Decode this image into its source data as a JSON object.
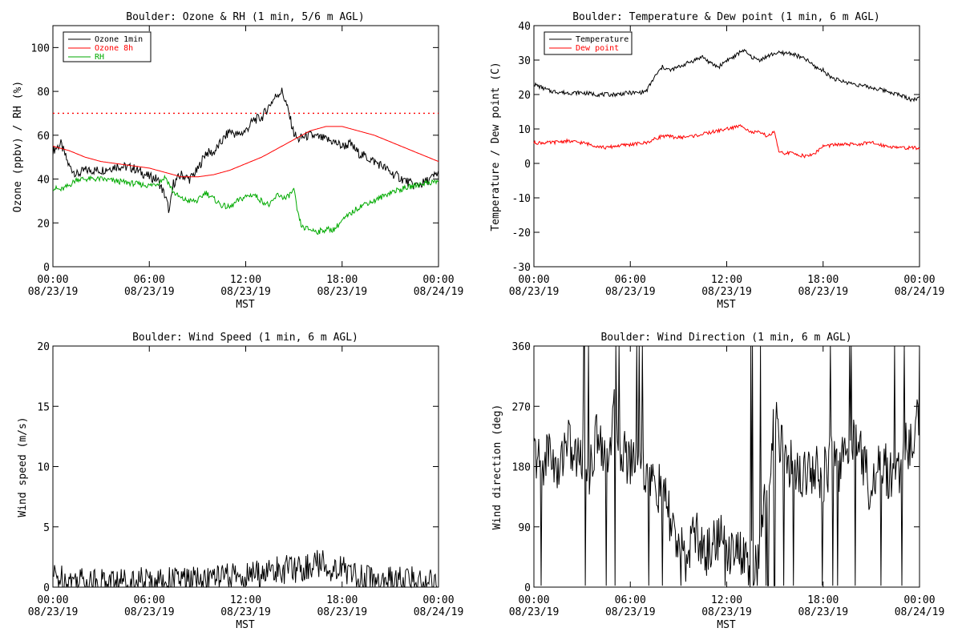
{
  "chart_data": [
    {
      "type": "line",
      "title": "Boulder: Ozone & RH (1 min, 5/6 m AGL)",
      "xlabel": "MST",
      "ylabel": "Ozone (ppbv) / RH (%)",
      "ylim": [
        0,
        110
      ],
      "yticks": [
        0,
        20,
        40,
        60,
        80,
        100
      ],
      "xlim": [
        "2019-08-23 00:00",
        "2019-08-24 00:00"
      ],
      "x_ticks": [
        {
          "time": "00:00",
          "date": "08/23/19"
        },
        {
          "time": "06:00",
          "date": "08/23/19"
        },
        {
          "time": "12:00",
          "date": "08/23/19"
        },
        {
          "time": "18:00",
          "date": "08/23/19"
        },
        {
          "time": "00:00",
          "date": "08/24/19"
        }
      ],
      "legend_position": "top-left",
      "reference_line": {
        "y": 70,
        "color": "#ff0000",
        "style": "dotted"
      },
      "series": [
        {
          "name": "Ozone 1min",
          "color": "#000000",
          "x": [
            "00:00",
            "00:30",
            "01:00",
            "01:30",
            "02:00",
            "03:00",
            "04:00",
            "05:00",
            "05:30",
            "06:00",
            "06:30",
            "07:00",
            "07:15",
            "07:30",
            "08:00",
            "08:30",
            "09:00",
            "09:30",
            "10:00",
            "10:30",
            "11:00",
            "11:30",
            "12:00",
            "12:30",
            "13:00",
            "13:30",
            "14:00",
            "14:15",
            "14:30",
            "15:00",
            "15:15",
            "15:30",
            "16:00",
            "17:00",
            "17:30",
            "18:00",
            "18:30",
            "19:00",
            "19:30",
            "20:00",
            "20:30",
            "21:00",
            "21:30",
            "22:00",
            "22:30",
            "23:00",
            "23:30",
            "24:00"
          ],
          "y": [
            53,
            56,
            46,
            42,
            44,
            44,
            46,
            45,
            43,
            41,
            40,
            32,
            25,
            38,
            42,
            40,
            44,
            52,
            52,
            57,
            62,
            60,
            62,
            67,
            68,
            74,
            79,
            80,
            75,
            61,
            58,
            59,
            60,
            58,
            57,
            55,
            56,
            52,
            50,
            48,
            46,
            43,
            41,
            39,
            37,
            38,
            40,
            43
          ]
        },
        {
          "name": "Ozone 8h",
          "color": "#ff0000",
          "x": [
            "00:00",
            "01:00",
            "02:00",
            "03:00",
            "04:00",
            "05:00",
            "06:00",
            "07:00",
            "08:00",
            "09:00",
            "10:00",
            "11:00",
            "12:00",
            "13:00",
            "14:00",
            "15:00",
            "16:00",
            "17:00",
            "18:00",
            "19:00",
            "20:00",
            "21:00",
            "22:00",
            "23:00",
            "24:00"
          ],
          "y": [
            55,
            53,
            50,
            48,
            47,
            46,
            45,
            43,
            41,
            41,
            42,
            44,
            47,
            50,
            54,
            58,
            62,
            64,
            64,
            62,
            60,
            57,
            54,
            51,
            48
          ]
        },
        {
          "name": "RH",
          "color": "#00aa00",
          "x": [
            "00:00",
            "00:30",
            "01:00",
            "01:30",
            "02:00",
            "03:00",
            "04:00",
            "05:00",
            "06:00",
            "06:30",
            "07:00",
            "07:30",
            "08:00",
            "08:30",
            "09:00",
            "09:30",
            "10:00",
            "10:30",
            "11:00",
            "11:30",
            "12:00",
            "12:30",
            "13:00",
            "13:30",
            "14:00",
            "14:30",
            "15:00",
            "15:15",
            "15:30",
            "16:00",
            "16:30",
            "17:00",
            "17:30",
            "18:00",
            "18:30",
            "19:00",
            "19:30",
            "20:00",
            "20:30",
            "21:00",
            "22:00",
            "23:00",
            "24:00"
          ],
          "y": [
            36,
            35,
            37,
            40,
            40,
            40,
            39,
            38,
            37,
            38,
            41,
            34,
            31,
            30,
            30,
            34,
            31,
            28,
            27,
            30,
            32,
            33,
            30,
            28,
            33,
            31,
            35,
            24,
            18,
            17,
            16,
            17,
            17,
            21,
            24,
            27,
            29,
            30,
            32,
            34,
            36,
            38,
            39
          ]
        }
      ]
    },
    {
      "type": "line",
      "title": "Boulder: Temperature & Dew point (1 min, 6 m AGL)",
      "xlabel": "MST",
      "ylabel": "Temperature / Dew point (C)",
      "ylim": [
        -30,
        40
      ],
      "yticks": [
        -30,
        -20,
        -10,
        0,
        10,
        20,
        30,
        40
      ],
      "xlim": [
        "2019-08-23 00:00",
        "2019-08-24 00:00"
      ],
      "x_ticks": [
        {
          "time": "00:00",
          "date": "08/23/19"
        },
        {
          "time": "06:00",
          "date": "08/23/19"
        },
        {
          "time": "12:00",
          "date": "08/23/19"
        },
        {
          "time": "18:00",
          "date": "08/23/19"
        },
        {
          "time": "00:00",
          "date": "08/24/19"
        }
      ],
      "legend_position": "top-left",
      "series": [
        {
          "name": "Temperature",
          "color": "#000000",
          "x": [
            "00:00",
            "00:30",
            "01:00",
            "02:00",
            "03:00",
            "04:00",
            "05:00",
            "06:00",
            "06:30",
            "07:00",
            "07:30",
            "08:00",
            "08:30",
            "09:00",
            "09:30",
            "10:00",
            "10:30",
            "11:00",
            "11:30",
            "12:00",
            "12:30",
            "13:00",
            "13:30",
            "14:00",
            "14:30",
            "15:00",
            "15:30",
            "16:00",
            "16:30",
            "17:00",
            "17:30",
            "18:00",
            "18:30",
            "19:00",
            "20:00",
            "21:00",
            "22:00",
            "23:00",
            "23:30",
            "24:00"
          ],
          "y": [
            23,
            22,
            21,
            20.5,
            20.5,
            20,
            20,
            20.5,
            20.5,
            21,
            25,
            28,
            27,
            28,
            29,
            30,
            31,
            29,
            28,
            30,
            31,
            33,
            31,
            30,
            31,
            32,
            32,
            32,
            31,
            30,
            28,
            27,
            25,
            24,
            23,
            22,
            21,
            19.5,
            18.5,
            19
          ]
        },
        {
          "name": "Dew point",
          "color": "#ff0000",
          "x": [
            "00:00",
            "01:00",
            "02:00",
            "03:00",
            "04:00",
            "04:30",
            "05:00",
            "06:00",
            "07:00",
            "08:00",
            "09:00",
            "10:00",
            "11:00",
            "12:00",
            "13:00",
            "13:30",
            "14:00",
            "14:30",
            "15:00",
            "15:15",
            "16:00",
            "17:00",
            "17:30",
            "18:00",
            "19:00",
            "20:00",
            "21:00",
            "22:00",
            "23:00",
            "24:00"
          ],
          "y": [
            6,
            6,
            6.5,
            6,
            5,
            4.5,
            5,
            5.5,
            6,
            8,
            7.5,
            8,
            9,
            10,
            11,
            9,
            9,
            8,
            9,
            3,
            3,
            2,
            3,
            5,
            5.5,
            5.5,
            6,
            5,
            4.5,
            4.5
          ]
        }
      ]
    },
    {
      "type": "line",
      "title": "Boulder: Wind Speed (1 min, 6 m AGL)",
      "xlabel": "MST",
      "ylabel": "Wind speed (m/s)",
      "ylim": [
        0,
        20
      ],
      "yticks": [
        0,
        5,
        10,
        15,
        20
      ],
      "xlim": [
        "2019-08-23 00:00",
        "2019-08-24 00:00"
      ],
      "x_ticks": [
        {
          "time": "00:00",
          "date": "08/23/19"
        },
        {
          "time": "06:00",
          "date": "08/23/19"
        },
        {
          "time": "12:00",
          "date": "08/23/19"
        },
        {
          "time": "18:00",
          "date": "08/23/19"
        },
        {
          "time": "00:00",
          "date": "08/24/19"
        }
      ],
      "series": [
        {
          "color": "#000000",
          "x": [
            "00:00",
            "01:00",
            "02:00",
            "03:00",
            "04:00",
            "05:00",
            "06:00",
            "07:00",
            "08:00",
            "09:00",
            "10:00",
            "11:00",
            "12:00",
            "13:00",
            "14:00",
            "15:00",
            "16:00",
            "16:30",
            "17:00",
            "17:30",
            "18:00",
            "18:30",
            "19:00",
            "20:00",
            "21:00",
            "22:00",
            "23:00",
            "24:00"
          ],
          "y": [
            0.9,
            0.6,
            0.6,
            0.5,
            0.5,
            0.5,
            0.5,
            0.5,
            0.6,
            0.5,
            0.7,
            0.8,
            0.9,
            1.2,
            1.4,
            1.5,
            1.7,
            2.0,
            1.8,
            1.6,
            1.5,
            1.2,
            0.8,
            0.6,
            0.5,
            0.6,
            0.5,
            0.5
          ]
        }
      ]
    },
    {
      "type": "line",
      "title": "Boulder: Wind Direction (1 min, 6 m AGL)",
      "xlabel": "MST",
      "ylabel": "Wind direction (deg)",
      "ylim": [
        0,
        360
      ],
      "yticks": [
        0,
        90,
        180,
        270,
        360
      ],
      "xlim": [
        "2019-08-23 00:00",
        "2019-08-24 00:00"
      ],
      "x_ticks": [
        {
          "time": "00:00",
          "date": "08/23/19"
        },
        {
          "time": "06:00",
          "date": "08/23/19"
        },
        {
          "time": "12:00",
          "date": "08/23/19"
        },
        {
          "time": "18:00",
          "date": "08/23/19"
        },
        {
          "time": "00:00",
          "date": "08/24/19"
        }
      ],
      "series": [
        {
          "color": "#000000",
          "x": [
            "00:00",
            "00:30",
            "01:00",
            "01:30",
            "02:00",
            "02:30",
            "03:00",
            "03:30",
            "04:00",
            "04:30",
            "05:00",
            "05:30",
            "06:00",
            "06:30",
            "07:00",
            "07:30",
            "08:00",
            "08:30",
            "09:00",
            "09:30",
            "10:00",
            "10:30",
            "11:00",
            "11:30",
            "12:00",
            "12:30",
            "13:00",
            "13:30",
            "14:00",
            "14:30",
            "15:00",
            "15:30",
            "16:00",
            "16:30",
            "17:00",
            "17:30",
            "18:00",
            "18:30",
            "19:00",
            "19:30",
            "20:00",
            "20:30",
            "21:00",
            "21:30",
            "22:00",
            "22:30",
            "23:00",
            "23:30",
            "24:00"
          ],
          "y": [
            200,
            180,
            210,
            160,
            230,
            190,
            200,
            170,
            240,
            190,
            260,
            200,
            190,
            200,
            170,
            150,
            140,
            100,
            60,
            40,
            90,
            50,
            60,
            80,
            50,
            70,
            40,
            30,
            30,
            160,
            250,
            200,
            180,
            170,
            175,
            180,
            165,
            190,
            180,
            200,
            240,
            190,
            140,
            200,
            170,
            160,
            200,
            220,
            260
          ]
        }
      ]
    }
  ]
}
